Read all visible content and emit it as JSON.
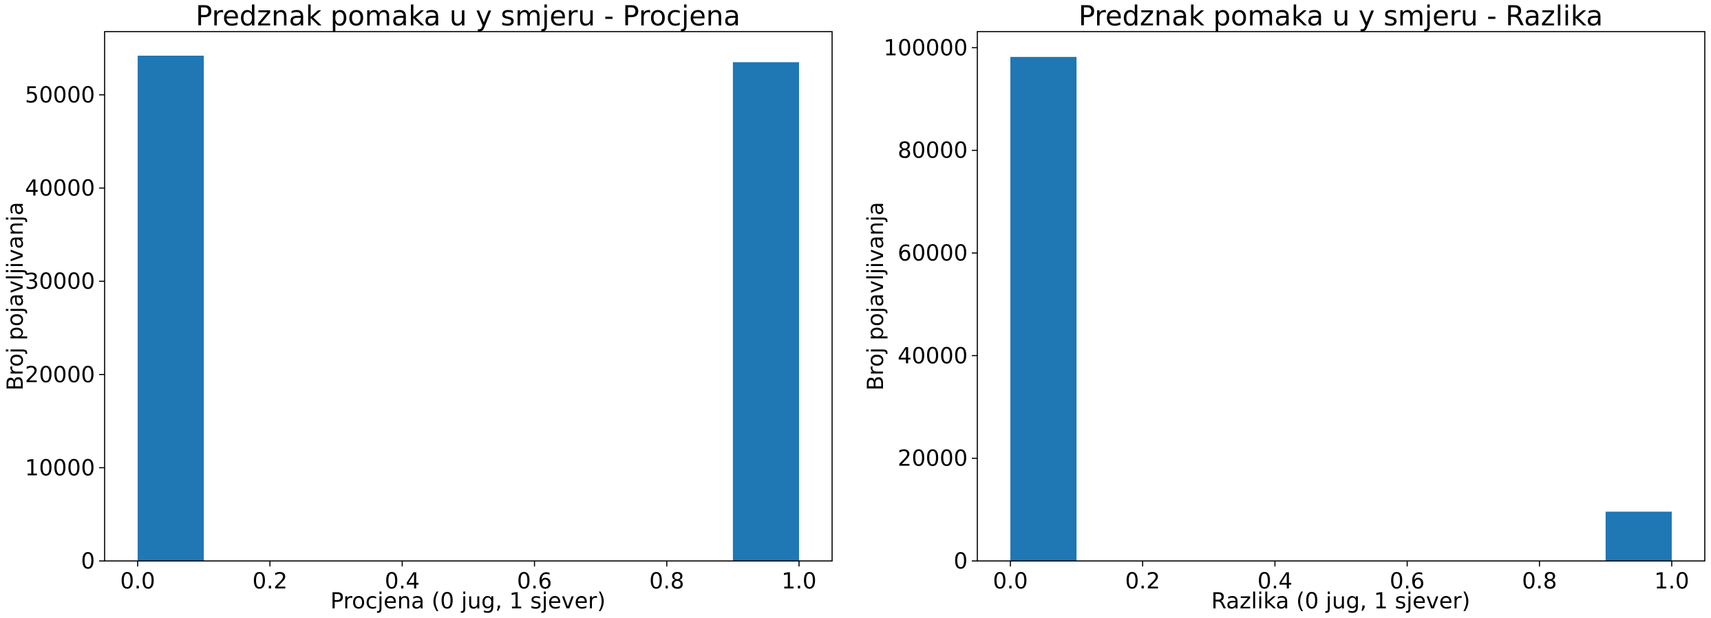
{
  "chart_data": [
    {
      "type": "bar",
      "title": "Predznak pomaka u y smjeru - Procjena",
      "xlabel": "Procjena (0 jug, 1 sjever)",
      "ylabel": "Broj pojavljivanja",
      "xlim": [
        -0.05,
        1.05
      ],
      "ylim": [
        0,
        56780
      ],
      "x_ticks": [
        "0.0",
        "0.2",
        "0.4",
        "0.6",
        "0.8",
        "1.0"
      ],
      "y_ticks": [
        "0",
        "10000",
        "20000",
        "30000",
        "40000",
        "50000"
      ],
      "bars": [
        {
          "x0": 0.0,
          "x1": 0.1,
          "value": 54200
        },
        {
          "x0": 0.9,
          "x1": 1.0,
          "value": 53500
        }
      ],
      "grid": false,
      "color": "#1f77b4"
    },
    {
      "type": "bar",
      "title": "Predznak pomaka u y smjeru - Razlika",
      "xlabel": "Razlika (0 jug, 1 sjever)",
      "ylabel": "Broj pojavljivanja",
      "xlim": [
        -0.05,
        1.05
      ],
      "ylim": [
        0,
        103130
      ],
      "x_ticks": [
        "0.0",
        "0.2",
        "0.4",
        "0.6",
        "0.8",
        "1.0"
      ],
      "y_ticks": [
        "0",
        "20000",
        "40000",
        "60000",
        "80000",
        "100000"
      ],
      "bars": [
        {
          "x0": 0.0,
          "x1": 0.1,
          "value": 98200
        },
        {
          "x0": 0.9,
          "x1": 1.0,
          "value": 9600
        }
      ],
      "grid": false,
      "color": "#1f77b4"
    }
  ]
}
